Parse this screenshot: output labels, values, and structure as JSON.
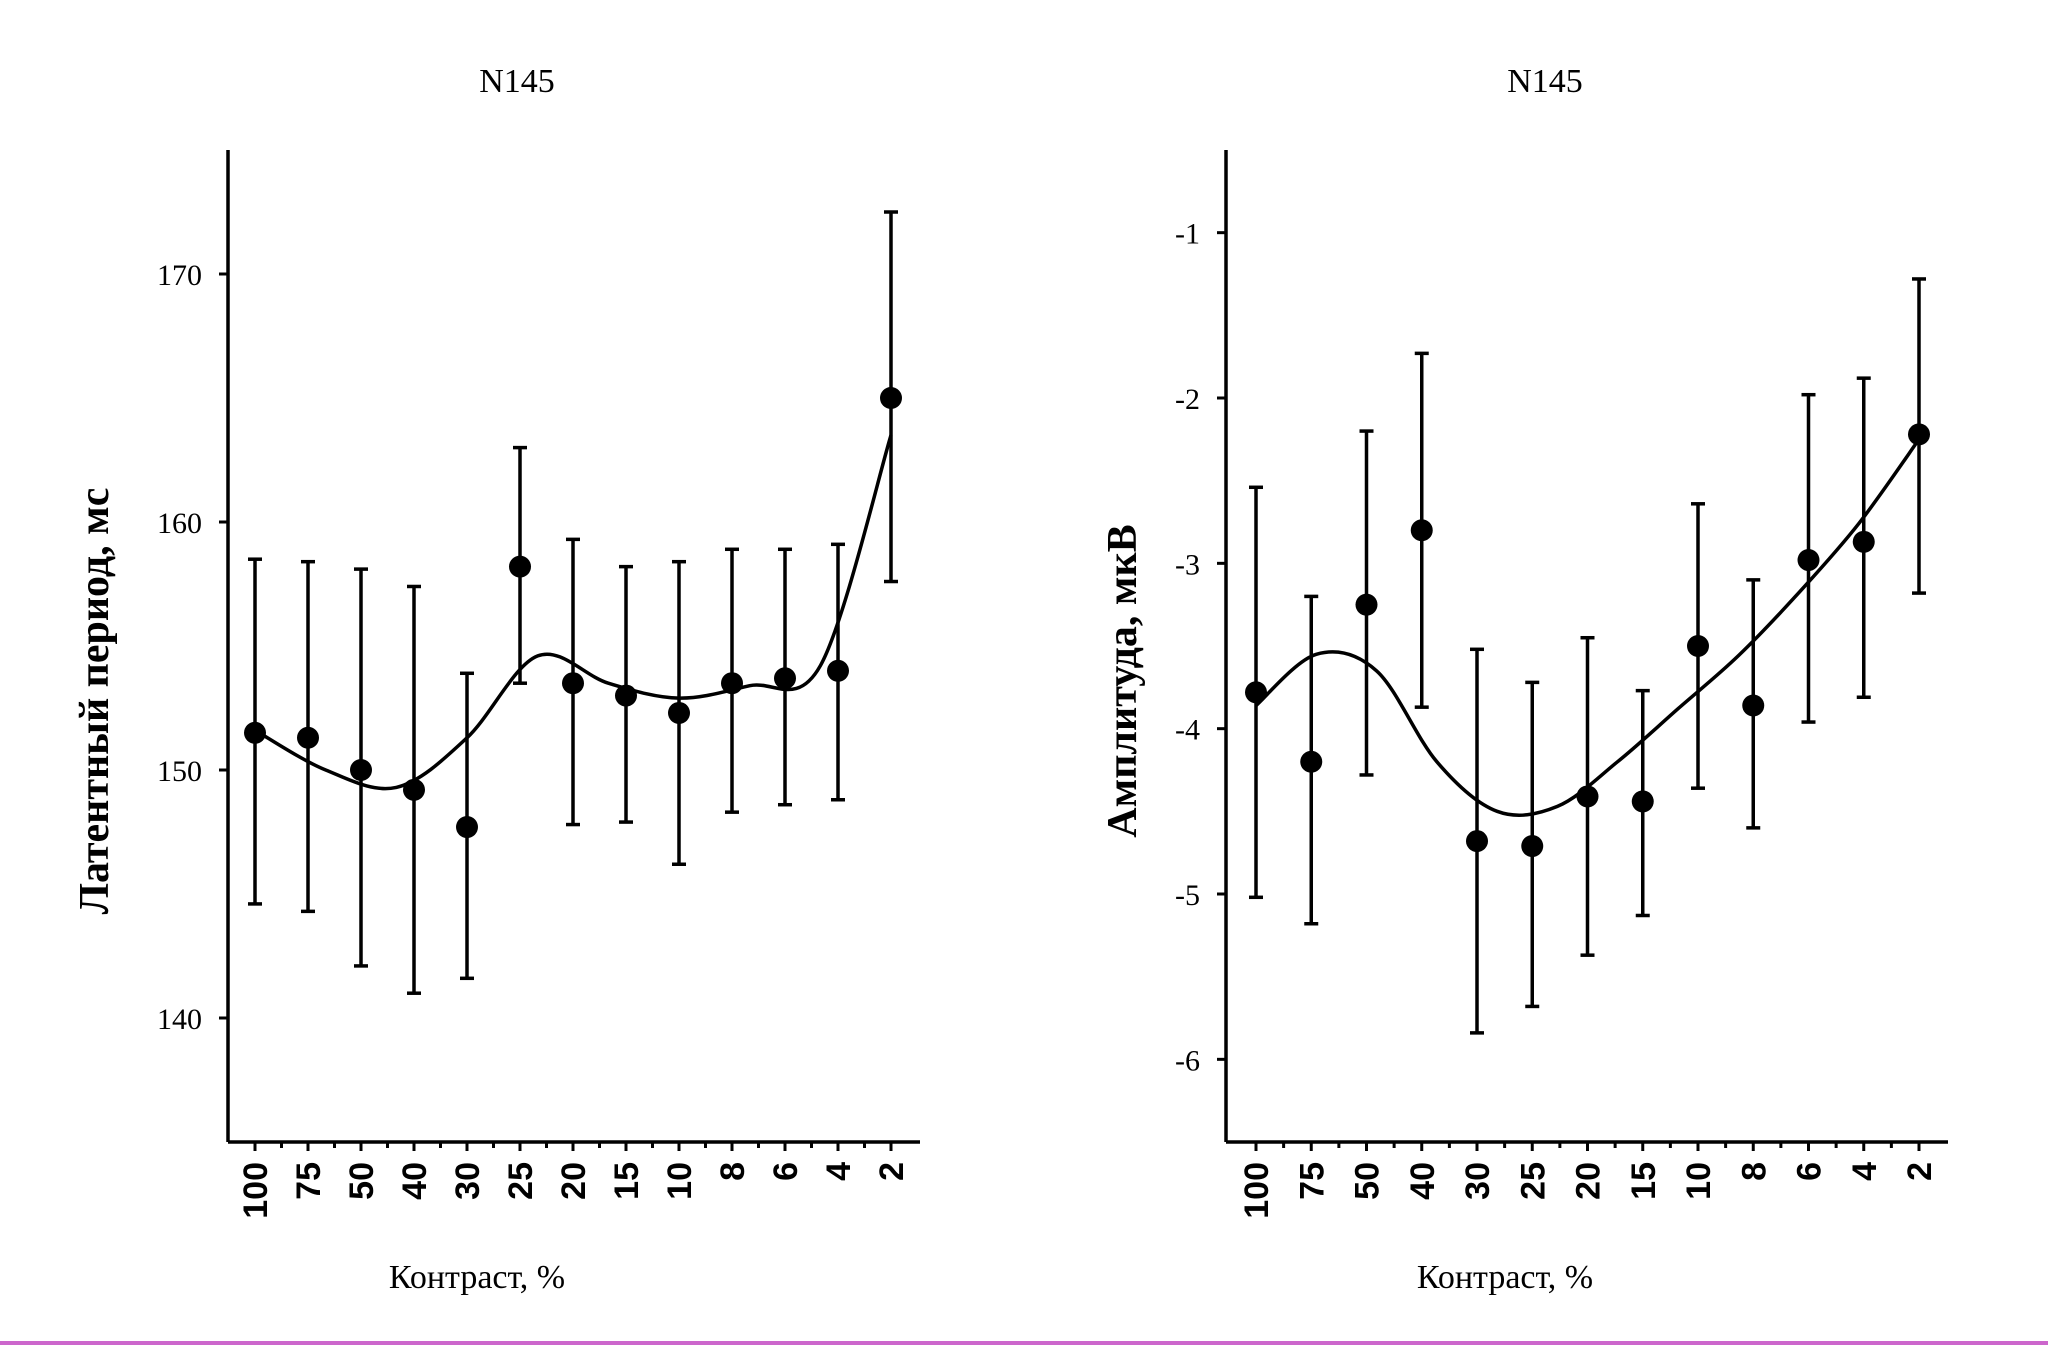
{
  "chart_data": [
    {
      "type": "scatter",
      "title": "N145",
      "xlabel": "Контраст, %",
      "ylabel": "Латентный период, мс",
      "categories": [
        "100",
        "75",
        "50",
        "40",
        "30",
        "25",
        "20",
        "15",
        "10",
        "8",
        "6",
        "4",
        "2"
      ],
      "ylim": [
        135,
        175
      ],
      "yticks": [
        140,
        150,
        160,
        170
      ],
      "yticklabels": [
        "140",
        "150",
        "160",
        "170"
      ],
      "grid": false,
      "legend": "none",
      "series": [
        {
          "values": [
            151.5,
            151.3,
            150.0,
            149.2,
            147.7,
            158.2,
            153.5,
            153.0,
            152.3,
            153.5,
            153.7,
            154.0,
            165.0
          ],
          "err_low": [
            144.6,
            144.3,
            142.1,
            141.0,
            141.6,
            153.5,
            147.8,
            147.9,
            146.2,
            148.3,
            148.6,
            148.8,
            157.6
          ],
          "err_high": [
            158.5,
            158.4,
            158.1,
            157.4,
            153.9,
            163.0,
            159.3,
            158.2,
            158.4,
            158.9,
            158.9,
            159.1,
            172.5
          ],
          "fit": [
            151.6,
            150.0,
            149.3,
            151.3,
            154.6,
            153.5,
            152.9,
            153.4,
            154.2,
            163.5
          ]
        }
      ]
    },
    {
      "type": "scatter",
      "title": "N145",
      "xlabel": "Контраст, %",
      "ylabel": "Амплитуда, мкВ",
      "categories": [
        "100",
        "75",
        "50",
        "40",
        "30",
        "25",
        "20",
        "15",
        "10",
        "8",
        "6",
        "4",
        "2"
      ],
      "ylim": [
        -6.5,
        -0.5
      ],
      "yticks": [
        -6,
        -5,
        -4,
        -3,
        -2,
        -1
      ],
      "yticklabels": [
        "-6",
        "-5",
        "-4",
        "-3",
        "-2",
        "-1"
      ],
      "grid": false,
      "legend": "none",
      "series": [
        {
          "values": [
            -3.78,
            -4.2,
            -3.25,
            -2.8,
            -4.68,
            -4.71,
            -4.41,
            -4.44,
            -3.5,
            -3.86,
            -2.98,
            -2.87,
            -2.22
          ],
          "err_low": [
            -5.02,
            -5.18,
            -4.28,
            -3.87,
            -5.84,
            -5.68,
            -5.37,
            -5.13,
            -4.36,
            -4.6,
            -3.96,
            -3.81,
            -3.18
          ],
          "err_high": [
            -2.54,
            -3.2,
            -2.2,
            -1.73,
            -3.52,
            -3.72,
            -3.45,
            -3.77,
            -2.64,
            -3.1,
            -1.98,
            -1.88,
            -1.28
          ],
          "fit": [
            -3.86,
            -3.55,
            -3.65,
            -4.2,
            -4.5,
            -4.47,
            -4.2,
            -3.88,
            -3.56,
            -3.18,
            -2.76,
            -2.25
          ]
        }
      ]
    }
  ]
}
